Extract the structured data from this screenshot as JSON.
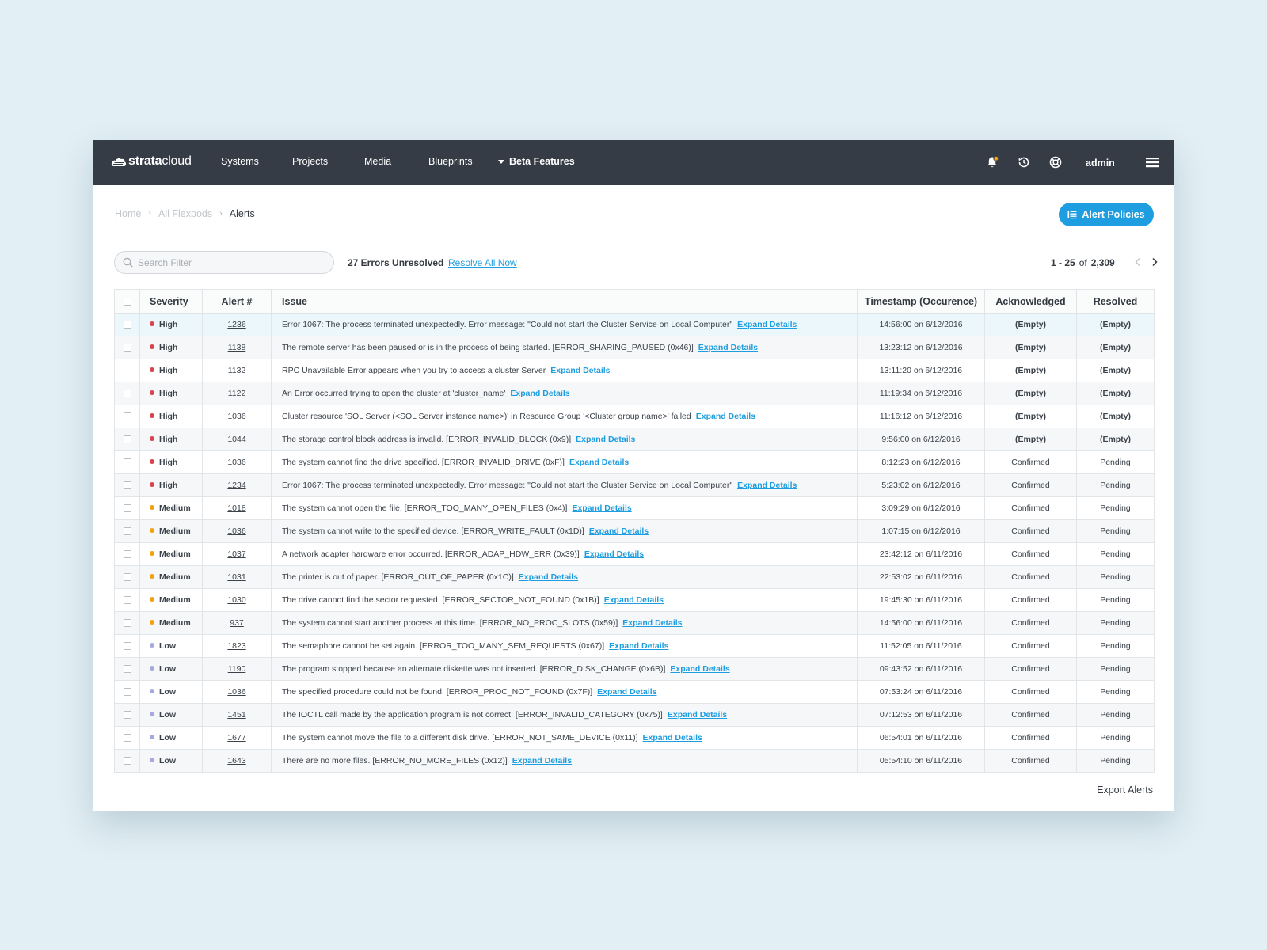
{
  "brand": {
    "name_bold": "strata",
    "name_light": "cloud"
  },
  "nav": [
    {
      "label": "Systems"
    },
    {
      "label": "Projects"
    },
    {
      "label": "Media"
    },
    {
      "label": "Blueprints"
    },
    {
      "label": "Beta Features"
    }
  ],
  "user": {
    "name": "admin"
  },
  "breadcrumb": {
    "home": "Home",
    "parent": "All Flexpods",
    "current": "Alerts"
  },
  "policies_button": {
    "label": "Alert Policies"
  },
  "search": {
    "placeholder": "Search Filter"
  },
  "summary": {
    "unresolved": "27 Errors Unresolved",
    "resolve_link": "Resolve All Now"
  },
  "pager": {
    "range": "1 - 25",
    "of": "of",
    "total": "2,309"
  },
  "colors": {
    "accent": "#1e9ee0",
    "high": "#d9434f",
    "medium": "#f2a20f",
    "low": "#a7a9de",
    "topbar": "#353c45"
  },
  "icons": [
    "bell-icon",
    "history-icon",
    "help-icon",
    "menu-icon",
    "search-icon",
    "list-icon",
    "chevron-left-icon",
    "chevron-right-icon"
  ],
  "table": {
    "headers": {
      "severity": "Severity",
      "alert": "Alert #",
      "issue": "Issue",
      "timestamp": "Timestamp (Occurence)",
      "acknowledged": "Acknowledged",
      "resolved": "Resolved"
    },
    "expand_label": "Expand Details",
    "rows": [
      {
        "severity": "High",
        "alert": "1236",
        "issue": "Error 1067: The process terminated unexpectedly.  Error message: \"Could not start the Cluster Service on Local Computer\"",
        "timestamp": "14:56:00 on 6/12/2016",
        "acknowledged": "(Empty)",
        "resolved": "(Empty)"
      },
      {
        "severity": "High",
        "alert": "1138",
        "issue": "The remote server has been paused or is in the process of being started. [ERROR_SHARING_PAUSED (0x46)]",
        "timestamp": "13:23:12 on 6/12/2016",
        "acknowledged": "(Empty)",
        "resolved": "(Empty)"
      },
      {
        "severity": "High",
        "alert": "1132",
        "issue": "RPC Unavailable Error appears when you try to access a cluster Server",
        "timestamp": "13:11:20 on 6/12/2016",
        "acknowledged": "(Empty)",
        "resolved": "(Empty)"
      },
      {
        "severity": "High",
        "alert": "1122",
        "issue": "An Error occurred trying to open the cluster at 'cluster_name'",
        "timestamp": "11:19:34 on 6/12/2016",
        "acknowledged": "(Empty)",
        "resolved": "(Empty)"
      },
      {
        "severity": "High",
        "alert": "1036",
        "issue": "Cluster resource 'SQL Server (<SQL Server instance name>)' in Resource Group '<Cluster group name>' failed",
        "timestamp": "11:16:12 on 6/12/2016",
        "acknowledged": "(Empty)",
        "resolved": "(Empty)"
      },
      {
        "severity": "High",
        "alert": "1044",
        "issue": "The storage control block address is invalid. [ERROR_INVALID_BLOCK (0x9)]",
        "timestamp": "9:56:00 on 6/12/2016",
        "acknowledged": "(Empty)",
        "resolved": "(Empty)"
      },
      {
        "severity": "High",
        "alert": "1036",
        "issue": "The system cannot find the drive specified. [ERROR_INVALID_DRIVE (0xF)]",
        "timestamp": "8:12:23 on 6/12/2016",
        "acknowledged": "Confirmed",
        "resolved": "Pending"
      },
      {
        "severity": "High",
        "alert": "1234",
        "issue": "Error 1067: The process terminated unexpectedly.  Error message: \"Could not start the Cluster Service on Local Computer\"",
        "timestamp": "5:23:02 on 6/12/2016",
        "acknowledged": "Confirmed",
        "resolved": "Pending"
      },
      {
        "severity": "Medium",
        "alert": "1018",
        "issue": "The system cannot open the file. [ERROR_TOO_MANY_OPEN_FILES (0x4)]",
        "timestamp": "3:09:29 on 6/12/2016",
        "acknowledged": "Confirmed",
        "resolved": "Pending"
      },
      {
        "severity": "Medium",
        "alert": "1036",
        "issue": "The system cannot write to the specified device. [ERROR_WRITE_FAULT (0x1D)]",
        "timestamp": "1:07:15 on 6/12/2016",
        "acknowledged": "Confirmed",
        "resolved": "Pending"
      },
      {
        "severity": "Medium",
        "alert": "1037",
        "issue": "A network adapter hardware error occurred. [ERROR_ADAP_HDW_ERR (0x39)]",
        "timestamp": "23:42:12 on 6/11/2016",
        "acknowledged": "Confirmed",
        "resolved": "Pending"
      },
      {
        "severity": "Medium",
        "alert": "1031",
        "issue": "The printer is out of paper. [ERROR_OUT_OF_PAPER (0x1C)]",
        "timestamp": "22:53:02 on 6/11/2016",
        "acknowledged": "Confirmed",
        "resolved": "Pending"
      },
      {
        "severity": "Medium",
        "alert": "1030",
        "issue": "The drive cannot find the sector requested. [ERROR_SECTOR_NOT_FOUND (0x1B)]",
        "timestamp": "19:45:30 on 6/11/2016",
        "acknowledged": "Confirmed",
        "resolved": "Pending"
      },
      {
        "severity": "Medium",
        "alert": "937",
        "issue": "The system cannot start another process at this time. [ERROR_NO_PROC_SLOTS (0x59)]",
        "timestamp": "14:56:00 on 6/11/2016",
        "acknowledged": "Confirmed",
        "resolved": "Pending"
      },
      {
        "severity": "Low",
        "alert": "1823",
        "issue": "The semaphore cannot be set again. [ERROR_TOO_MANY_SEM_REQUESTS (0x67)]",
        "timestamp": "11:52:05 on 6/11/2016",
        "acknowledged": "Confirmed",
        "resolved": "Pending"
      },
      {
        "severity": "Low",
        "alert": "1190",
        "issue": "The program stopped because an alternate diskette was not inserted. [ERROR_DISK_CHANGE (0x6B)]",
        "timestamp": "09:43:52 on 6/11/2016",
        "acknowledged": "Confirmed",
        "resolved": "Pending"
      },
      {
        "severity": "Low",
        "alert": "1036",
        "issue": "The specified procedure could not be found. [ERROR_PROC_NOT_FOUND (0x7F)]",
        "timestamp": "07:53:24 on 6/11/2016",
        "acknowledged": "Confirmed",
        "resolved": "Pending"
      },
      {
        "severity": "Low",
        "alert": "1451",
        "issue": "The IOCTL call made by the application program is not correct. [ERROR_INVALID_CATEGORY (0x75)]",
        "timestamp": "07:12:53 on 6/11/2016",
        "acknowledged": "Confirmed",
        "resolved": "Pending"
      },
      {
        "severity": "Low",
        "alert": "1677",
        "issue": "The system cannot move the file to a different disk drive. [ERROR_NOT_SAME_DEVICE (0x11)]",
        "timestamp": "06:54:01 on 6/11/2016",
        "acknowledged": "Confirmed",
        "resolved": "Pending"
      },
      {
        "severity": "Low",
        "alert": "1643",
        "issue": "There are no more files. [ERROR_NO_MORE_FILES (0x12)]",
        "timestamp": "05:54:10 on 6/11/2016",
        "acknowledged": "Confirmed",
        "resolved": "Pending"
      }
    ]
  },
  "export_label": "Export Alerts"
}
